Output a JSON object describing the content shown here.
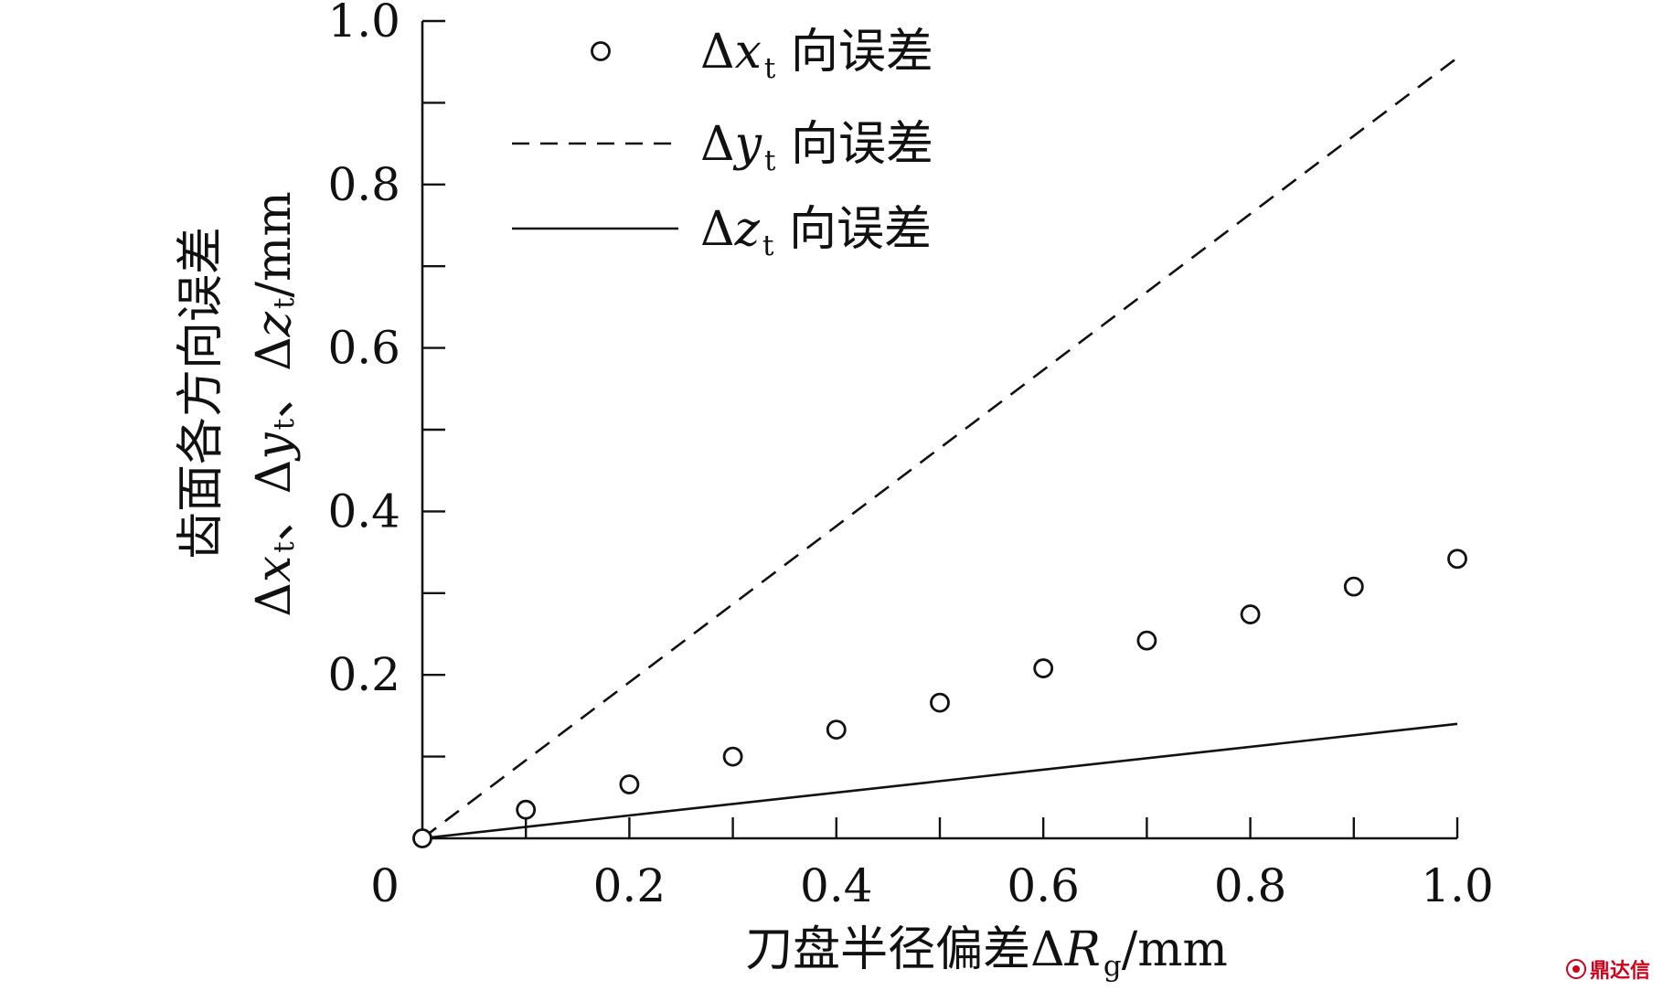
{
  "chart_data": {
    "type": "line",
    "xlim": [
      0,
      1.0
    ],
    "ylim": [
      0,
      1.0
    ],
    "minor_tick_step": 0.1,
    "origin_label": "0",
    "xticks": [
      {
        "value": 0.2,
        "label": "0.2"
      },
      {
        "value": 0.4,
        "label": "0.4"
      },
      {
        "value": 0.6,
        "label": "0.6"
      },
      {
        "value": 0.8,
        "label": "0.8"
      },
      {
        "value": 1.0,
        "label": "1.0"
      }
    ],
    "yticks": [
      {
        "value": 0.2,
        "label": "0.2"
      },
      {
        "value": 0.4,
        "label": "0.4"
      },
      {
        "value": 0.6,
        "label": "0.6"
      },
      {
        "value": 0.8,
        "label": "0.8"
      },
      {
        "value": 1.0,
        "label": "1.0"
      }
    ],
    "xlabel": [
      {
        "t": "刀盘半径偏差"
      },
      {
        "t": "Δ"
      },
      {
        "t": "R",
        "style": "italic"
      },
      {
        "t": "g",
        "style": "sub"
      },
      {
        "t": "/mm"
      }
    ],
    "ylabel": {
      "line1": [
        {
          "t": "齿面各方向误差"
        }
      ],
      "line2": [
        {
          "t": "Δ"
        },
        {
          "t": "x",
          "style": "italic"
        },
        {
          "t": "t",
          "style": "sub"
        },
        {
          "t": "、Δ"
        },
        {
          "t": "y",
          "style": "italic"
        },
        {
          "t": "t",
          "style": "sub"
        },
        {
          "t": "、Δ"
        },
        {
          "t": "z",
          "style": "italic"
        },
        {
          "t": "t",
          "style": "sub"
        },
        {
          "t": "/mm"
        }
      ]
    },
    "legend_position": "top-left",
    "series": [
      {
        "label": [
          {
            "t": "Δ"
          },
          {
            "t": "x",
            "style": "italic"
          },
          {
            "t": "t",
            "style": "sub"
          },
          {
            "t": " 向误差"
          }
        ],
        "style": "markers",
        "x": [
          0,
          0.1,
          0.2,
          0.3,
          0.4,
          0.5,
          0.6,
          0.7,
          0.8,
          0.9,
          1.0
        ],
        "values": [
          0,
          0.035,
          0.066,
          0.1,
          0.133,
          0.166,
          0.208,
          0.242,
          0.274,
          0.308,
          0.342
        ]
      },
      {
        "label": [
          {
            "t": "Δ"
          },
          {
            "t": "y",
            "style": "italic"
          },
          {
            "t": "t",
            "style": "sub"
          },
          {
            "t": " 向误差"
          }
        ],
        "style": "dashed",
        "x": [
          0,
          1.0
        ],
        "values": [
          0,
          0.955
        ]
      },
      {
        "label": [
          {
            "t": "Δ"
          },
          {
            "t": "z",
            "style": "italic"
          },
          {
            "t": "t",
            "style": "sub"
          },
          {
            "t": " 向误差"
          }
        ],
        "style": "solid",
        "x": [
          0,
          1.0
        ],
        "values": [
          0,
          0.14
        ]
      }
    ],
    "colors": {
      "ink": "#111111",
      "marker_fill": "#ffffff"
    }
  },
  "watermark": {
    "text": "鼎达信"
  }
}
